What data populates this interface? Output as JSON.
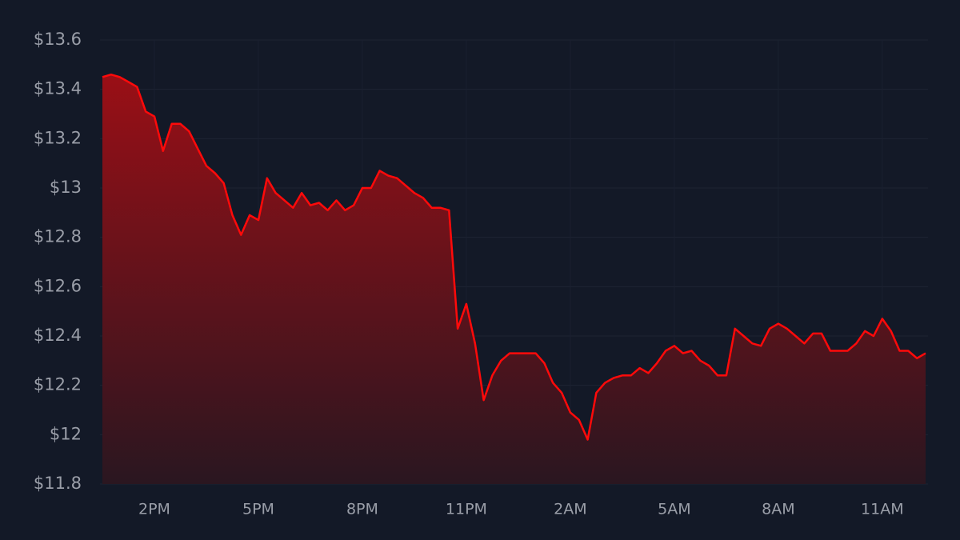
{
  "chart_data": {
    "type": "area",
    "categories": [
      null,
      null,
      null,
      null,
      null,
      null,
      "2PM",
      null,
      null,
      null,
      null,
      null,
      null,
      null,
      null,
      null,
      null,
      null,
      "5PM",
      null,
      null,
      null,
      null,
      null,
      null,
      null,
      null,
      null,
      null,
      null,
      "8PM",
      null,
      null,
      null,
      null,
      null,
      null,
      null,
      null,
      null,
      null,
      null,
      "11PM",
      null,
      null,
      null,
      null,
      null,
      null,
      null,
      null,
      null,
      null,
      null,
      "2AM",
      null,
      null,
      null,
      null,
      null,
      null,
      null,
      null,
      null,
      null,
      null,
      "5AM",
      null,
      null,
      null,
      null,
      null,
      null,
      null,
      null,
      null,
      null,
      null,
      "8AM",
      null,
      null,
      null,
      null,
      null,
      null,
      null,
      null,
      null,
      null,
      null,
      "11AM",
      null,
      null,
      null,
      null,
      null
    ],
    "values": [
      13.45,
      13.46,
      13.45,
      13.43,
      13.41,
      13.31,
      13.29,
      13.15,
      13.26,
      13.26,
      13.23,
      13.16,
      13.09,
      13.06,
      13.02,
      12.89,
      12.81,
      12.89,
      12.87,
      13.04,
      12.98,
      12.95,
      12.92,
      12.98,
      12.93,
      12.94,
      12.91,
      12.95,
      12.91,
      12.93,
      13.0,
      13.0,
      13.07,
      13.05,
      13.04,
      13.01,
      12.98,
      12.96,
      12.92,
      12.92,
      12.91,
      12.43,
      12.53,
      12.37,
      12.14,
      12.24,
      12.3,
      12.33,
      12.33,
      12.33,
      12.33,
      12.29,
      12.21,
      12.17,
      12.09,
      12.06,
      11.98,
      12.17,
      12.21,
      12.23,
      12.24,
      12.24,
      12.27,
      12.25,
      12.29,
      12.34,
      12.36,
      12.33,
      12.34,
      12.3,
      12.28,
      12.24,
      12.24,
      12.43,
      12.4,
      12.37,
      12.36,
      12.43,
      12.45,
      12.43,
      12.4,
      12.37,
      12.41,
      12.41,
      12.34,
      12.34,
      12.34,
      12.37,
      12.42,
      12.4,
      12.47,
      12.42,
      12.34,
      12.34,
      12.31,
      12.33
    ],
    "color": "#ff0a0a",
    "ylim": [
      11.8,
      13.6
    ],
    "yticks": [
      {
        "value": 11.8,
        "label": "$11.8"
      },
      {
        "value": 12,
        "label": "$12"
      },
      {
        "value": 12.2,
        "label": "$12.2"
      },
      {
        "value": 12.4,
        "label": "$12.4"
      },
      {
        "value": 12.6,
        "label": "$12.6"
      },
      {
        "value": 12.8,
        "label": "$12.8"
      },
      {
        "value": 13,
        "label": "$13"
      },
      {
        "value": 13.2,
        "label": "$13.2"
      },
      {
        "value": 13.4,
        "label": "$13.4"
      },
      {
        "value": 13.6,
        "label": "$13.6"
      }
    ],
    "grid": true
  }
}
